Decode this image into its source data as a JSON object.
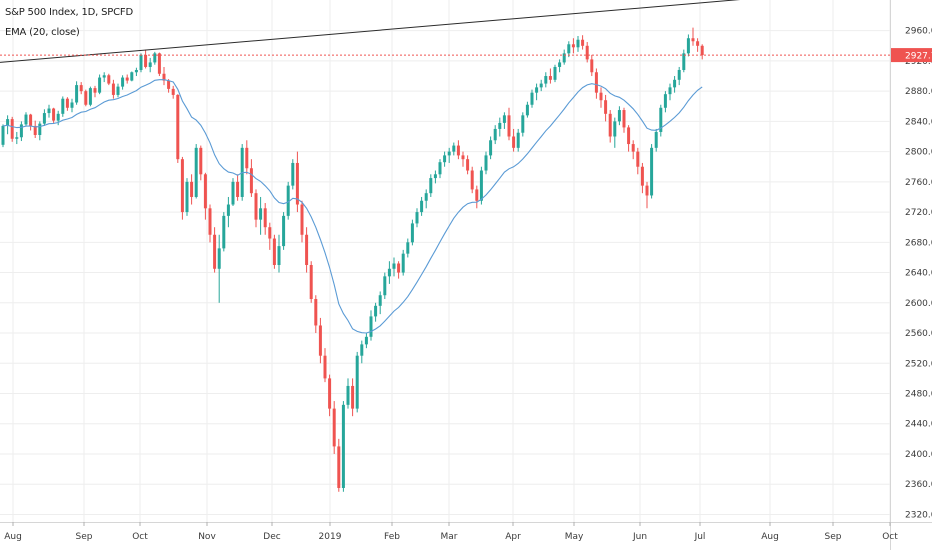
{
  "header": {
    "title": "S&P 500 Index, 1D, SPCFD",
    "indicator": "EMA (20, close)"
  },
  "chart_data": {
    "type": "candlestick",
    "ylim": [
      2310,
      2990
    ],
    "y_ticks": [
      "2960.0",
      "2920.0",
      "2880.0",
      "2840.0",
      "2800.0",
      "2760.0",
      "2720.0",
      "2680.0",
      "2640.0",
      "2600.0",
      "2560.0",
      "2520.0",
      "2480.0",
      "2440.0",
      "2400.0",
      "2360.0",
      "2320.0"
    ],
    "x_ticks": [
      "Aug",
      "Sep",
      "Oct",
      "Nov",
      "Dec",
      "2019",
      "Feb",
      "Mar",
      "Apr",
      "May",
      "Jun",
      "Jul",
      "Aug",
      "Sep",
      "Oct"
    ],
    "last_price_label": "2927.7",
    "last_price": 2927.7,
    "overlay_label": "EMA (20, close)",
    "trendline": {
      "start": {
        "date": "Jul 2018",
        "price": 2918
      },
      "end": {
        "date": "Aug 2019",
        "price": 3010
      }
    },
    "colors": {
      "up": "#26a69a",
      "down": "#ef5350",
      "ema": "#5b9bd5",
      "trendline": "#2b2b2b",
      "price_tag": "#ef5350",
      "grid": "#eeeeee",
      "axis_text": "#3a3a3a"
    },
    "candles": [
      [
        2809,
        2836,
        2806,
        2834
      ],
      [
        2834,
        2848,
        2823,
        2843
      ],
      [
        2843,
        2846,
        2813,
        2817
      ],
      [
        2817,
        2826,
        2810,
        2819
      ],
      [
        2819,
        2840,
        2814,
        2836
      ],
      [
        2836,
        2852,
        2833,
        2849
      ],
      [
        2849,
        2850,
        2828,
        2834
      ],
      [
        2834,
        2841,
        2818,
        2822
      ],
      [
        2822,
        2840,
        2815,
        2837
      ],
      [
        2837,
        2856,
        2834,
        2851
      ],
      [
        2851,
        2862,
        2845,
        2857
      ],
      [
        2857,
        2858,
        2838,
        2841
      ],
      [
        2841,
        2854,
        2835,
        2850
      ],
      [
        2850,
        2873,
        2846,
        2870
      ],
      [
        2870,
        2872,
        2854,
        2858
      ],
      [
        2858,
        2870,
        2852,
        2865
      ],
      [
        2865,
        2893,
        2862,
        2888
      ],
      [
        2888,
        2892,
        2876,
        2880
      ],
      [
        2880,
        2882,
        2860,
        2862
      ],
      [
        2862,
        2886,
        2860,
        2884
      ],
      [
        2884,
        2887,
        2872,
        2878
      ],
      [
        2878,
        2902,
        2876,
        2898
      ],
      [
        2898,
        2905,
        2892,
        2901
      ],
      [
        2901,
        2903,
        2888,
        2890
      ],
      [
        2890,
        2895,
        2870,
        2875
      ],
      [
        2875,
        2890,
        2872,
        2886
      ],
      [
        2886,
        2901,
        2882,
        2898
      ],
      [
        2898,
        2902,
        2890,
        2894
      ],
      [
        2894,
        2906,
        2893,
        2905
      ],
      [
        2905,
        2911,
        2900,
        2908
      ],
      [
        2908,
        2930,
        2905,
        2928
      ],
      [
        2928,
        2935,
        2910,
        2912
      ],
      [
        2912,
        2924,
        2905,
        2918
      ],
      [
        2918,
        2932,
        2915,
        2930
      ],
      [
        2930,
        2931,
        2900,
        2903
      ],
      [
        2903,
        2912,
        2888,
        2894
      ],
      [
        2894,
        2896,
        2878,
        2883
      ],
      [
        2883,
        2887,
        2870,
        2875
      ],
      [
        2875,
        2876,
        2785,
        2790
      ],
      [
        2790,
        2793,
        2710,
        2720
      ],
      [
        2720,
        2765,
        2715,
        2760
      ],
      [
        2760,
        2770,
        2730,
        2740
      ],
      [
        2740,
        2810,
        2738,
        2805
      ],
      [
        2805,
        2808,
        2762,
        2770
      ],
      [
        2770,
        2772,
        2710,
        2725
      ],
      [
        2725,
        2730,
        2680,
        2690
      ],
      [
        2690,
        2700,
        2640,
        2645
      ],
      [
        2645,
        2690,
        2600,
        2672
      ],
      [
        2672,
        2720,
        2668,
        2715
      ],
      [
        2715,
        2740,
        2700,
        2730
      ],
      [
        2730,
        2765,
        2728,
        2760
      ],
      [
        2760,
        2770,
        2735,
        2740
      ],
      [
        2740,
        2810,
        2735,
        2805
      ],
      [
        2805,
        2815,
        2770,
        2778
      ],
      [
        2778,
        2790,
        2740,
        2745
      ],
      [
        2745,
        2750,
        2700,
        2710
      ],
      [
        2710,
        2740,
        2690,
        2725
      ],
      [
        2725,
        2732,
        2690,
        2700
      ],
      [
        2700,
        2706,
        2670,
        2685
      ],
      [
        2685,
        2690,
        2645,
        2650
      ],
      [
        2650,
        2690,
        2640,
        2675
      ],
      [
        2675,
        2720,
        2670,
        2715
      ],
      [
        2715,
        2760,
        2710,
        2755
      ],
      [
        2755,
        2790,
        2750,
        2785
      ],
      [
        2785,
        2800,
        2720,
        2730
      ],
      [
        2730,
        2735,
        2680,
        2690
      ],
      [
        2690,
        2700,
        2640,
        2650
      ],
      [
        2650,
        2655,
        2600,
        2605
      ],
      [
        2605,
        2610,
        2560,
        2570
      ],
      [
        2570,
        2580,
        2520,
        2530
      ],
      [
        2530,
        2540,
        2495,
        2500
      ],
      [
        2500,
        2505,
        2450,
        2460
      ],
      [
        2460,
        2470,
        2400,
        2410
      ],
      [
        2410,
        2420,
        2350,
        2355
      ],
      [
        2355,
        2470,
        2350,
        2465
      ],
      [
        2465,
        2500,
        2460,
        2490
      ],
      [
        2490,
        2500,
        2450,
        2460
      ],
      [
        2460,
        2535,
        2455,
        2530
      ],
      [
        2530,
        2550,
        2520,
        2545
      ],
      [
        2545,
        2560,
        2540,
        2555
      ],
      [
        2555,
        2590,
        2550,
        2582
      ],
      [
        2582,
        2600,
        2575,
        2596
      ],
      [
        2596,
        2615,
        2585,
        2610
      ],
      [
        2610,
        2640,
        2605,
        2635
      ],
      [
        2635,
        2655,
        2625,
        2645
      ],
      [
        2645,
        2660,
        2635,
        2652
      ],
      [
        2652,
        2655,
        2632,
        2640
      ],
      [
        2640,
        2670,
        2636,
        2665
      ],
      [
        2665,
        2685,
        2660,
        2680
      ],
      [
        2680,
        2710,
        2676,
        2705
      ],
      [
        2705,
        2725,
        2700,
        2720
      ],
      [
        2720,
        2740,
        2715,
        2735
      ],
      [
        2735,
        2750,
        2725,
        2745
      ],
      [
        2745,
        2770,
        2740,
        2765
      ],
      [
        2765,
        2775,
        2758,
        2770
      ],
      [
        2770,
        2790,
        2765,
        2786
      ],
      [
        2786,
        2800,
        2780,
        2795
      ],
      [
        2795,
        2805,
        2785,
        2800
      ],
      [
        2800,
        2812,
        2795,
        2808
      ],
      [
        2808,
        2815,
        2790,
        2795
      ],
      [
        2795,
        2800,
        2780,
        2790
      ],
      [
        2790,
        2795,
        2770,
        2775
      ],
      [
        2775,
        2780,
        2745,
        2750
      ],
      [
        2750,
        2755,
        2725,
        2735
      ],
      [
        2735,
        2780,
        2730,
        2775
      ],
      [
        2775,
        2800,
        2770,
        2795
      ],
      [
        2795,
        2820,
        2790,
        2815
      ],
      [
        2815,
        2835,
        2810,
        2830
      ],
      [
        2830,
        2845,
        2820,
        2838
      ],
      [
        2838,
        2852,
        2830,
        2848
      ],
      [
        2848,
        2858,
        2815,
        2820
      ],
      [
        2820,
        2830,
        2800,
        2805
      ],
      [
        2805,
        2830,
        2800,
        2825
      ],
      [
        2825,
        2852,
        2820,
        2848
      ],
      [
        2848,
        2866,
        2845,
        2862
      ],
      [
        2862,
        2882,
        2858,
        2878
      ],
      [
        2878,
        2890,
        2868,
        2885
      ],
      [
        2885,
        2895,
        2880,
        2890
      ],
      [
        2890,
        2905,
        2885,
        2900
      ],
      [
        2900,
        2910,
        2890,
        2895
      ],
      [
        2895,
        2915,
        2892,
        2912
      ],
      [
        2912,
        2922,
        2905,
        2918
      ],
      [
        2918,
        2935,
        2915,
        2930
      ],
      [
        2930,
        2946,
        2925,
        2942
      ],
      [
        2942,
        2950,
        2930,
        2938
      ],
      [
        2938,
        2953,
        2932,
        2948
      ],
      [
        2948,
        2954,
        2935,
        2940
      ],
      [
        2940,
        2945,
        2918,
        2922
      ],
      [
        2922,
        2928,
        2900,
        2905
      ],
      [
        2905,
        2910,
        2870,
        2878
      ],
      [
        2878,
        2885,
        2858,
        2868
      ],
      [
        2868,
        2875,
        2840,
        2850
      ],
      [
        2850,
        2855,
        2812,
        2820
      ],
      [
        2820,
        2845,
        2805,
        2840
      ],
      [
        2840,
        2860,
        2835,
        2855
      ],
      [
        2855,
        2858,
        2825,
        2832
      ],
      [
        2832,
        2835,
        2800,
        2810
      ],
      [
        2810,
        2815,
        2790,
        2800
      ],
      [
        2800,
        2805,
        2770,
        2780
      ],
      [
        2780,
        2785,
        2745,
        2755
      ],
      [
        2755,
        2760,
        2725,
        2742
      ],
      [
        2742,
        2810,
        2738,
        2805
      ],
      [
        2805,
        2830,
        2800,
        2826
      ],
      [
        2826,
        2862,
        2820,
        2858
      ],
      [
        2858,
        2880,
        2852,
        2876
      ],
      [
        2876,
        2890,
        2868,
        2885
      ],
      [
        2885,
        2900,
        2878,
        2895
      ],
      [
        2895,
        2912,
        2888,
        2908
      ],
      [
        2908,
        2935,
        2905,
        2930
      ],
      [
        2930,
        2955,
        2926,
        2950
      ],
      [
        2950,
        2964,
        2940,
        2946
      ],
      [
        2946,
        2950,
        2932,
        2940
      ],
      [
        2940,
        2942,
        2922,
        2927.7
      ]
    ]
  }
}
